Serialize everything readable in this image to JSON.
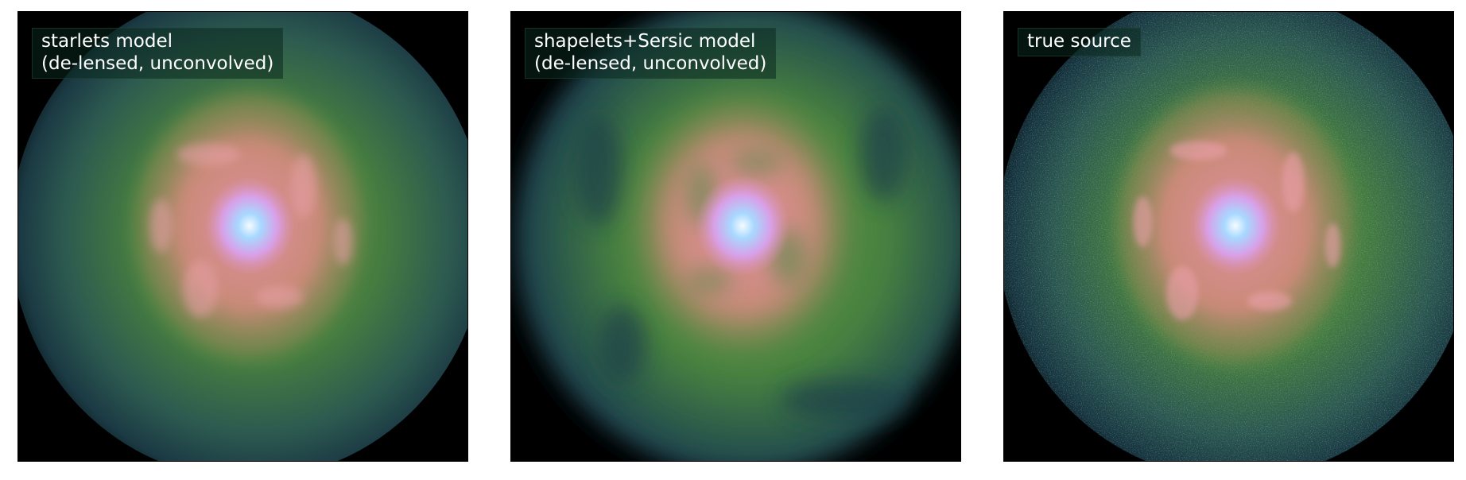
{
  "panels": [
    {
      "id": "starlets",
      "label_line1": "starlets model",
      "label_line2": "(de-lensed, unconvolved)"
    },
    {
      "id": "shapelets",
      "label_line1": "shapelets+Sersic model",
      "label_line2": "(de-lensed, unconvolved)"
    },
    {
      "id": "true",
      "label_line1": "true source",
      "label_line2": ""
    }
  ],
  "colors": {
    "background": "#000000",
    "outer_halo": "#1f4a52",
    "disk_green": "#4f8a3e",
    "arm_pink": "#d98a8a",
    "core_white": "#e8f4ff",
    "core_blue": "#9fd0ff"
  }
}
